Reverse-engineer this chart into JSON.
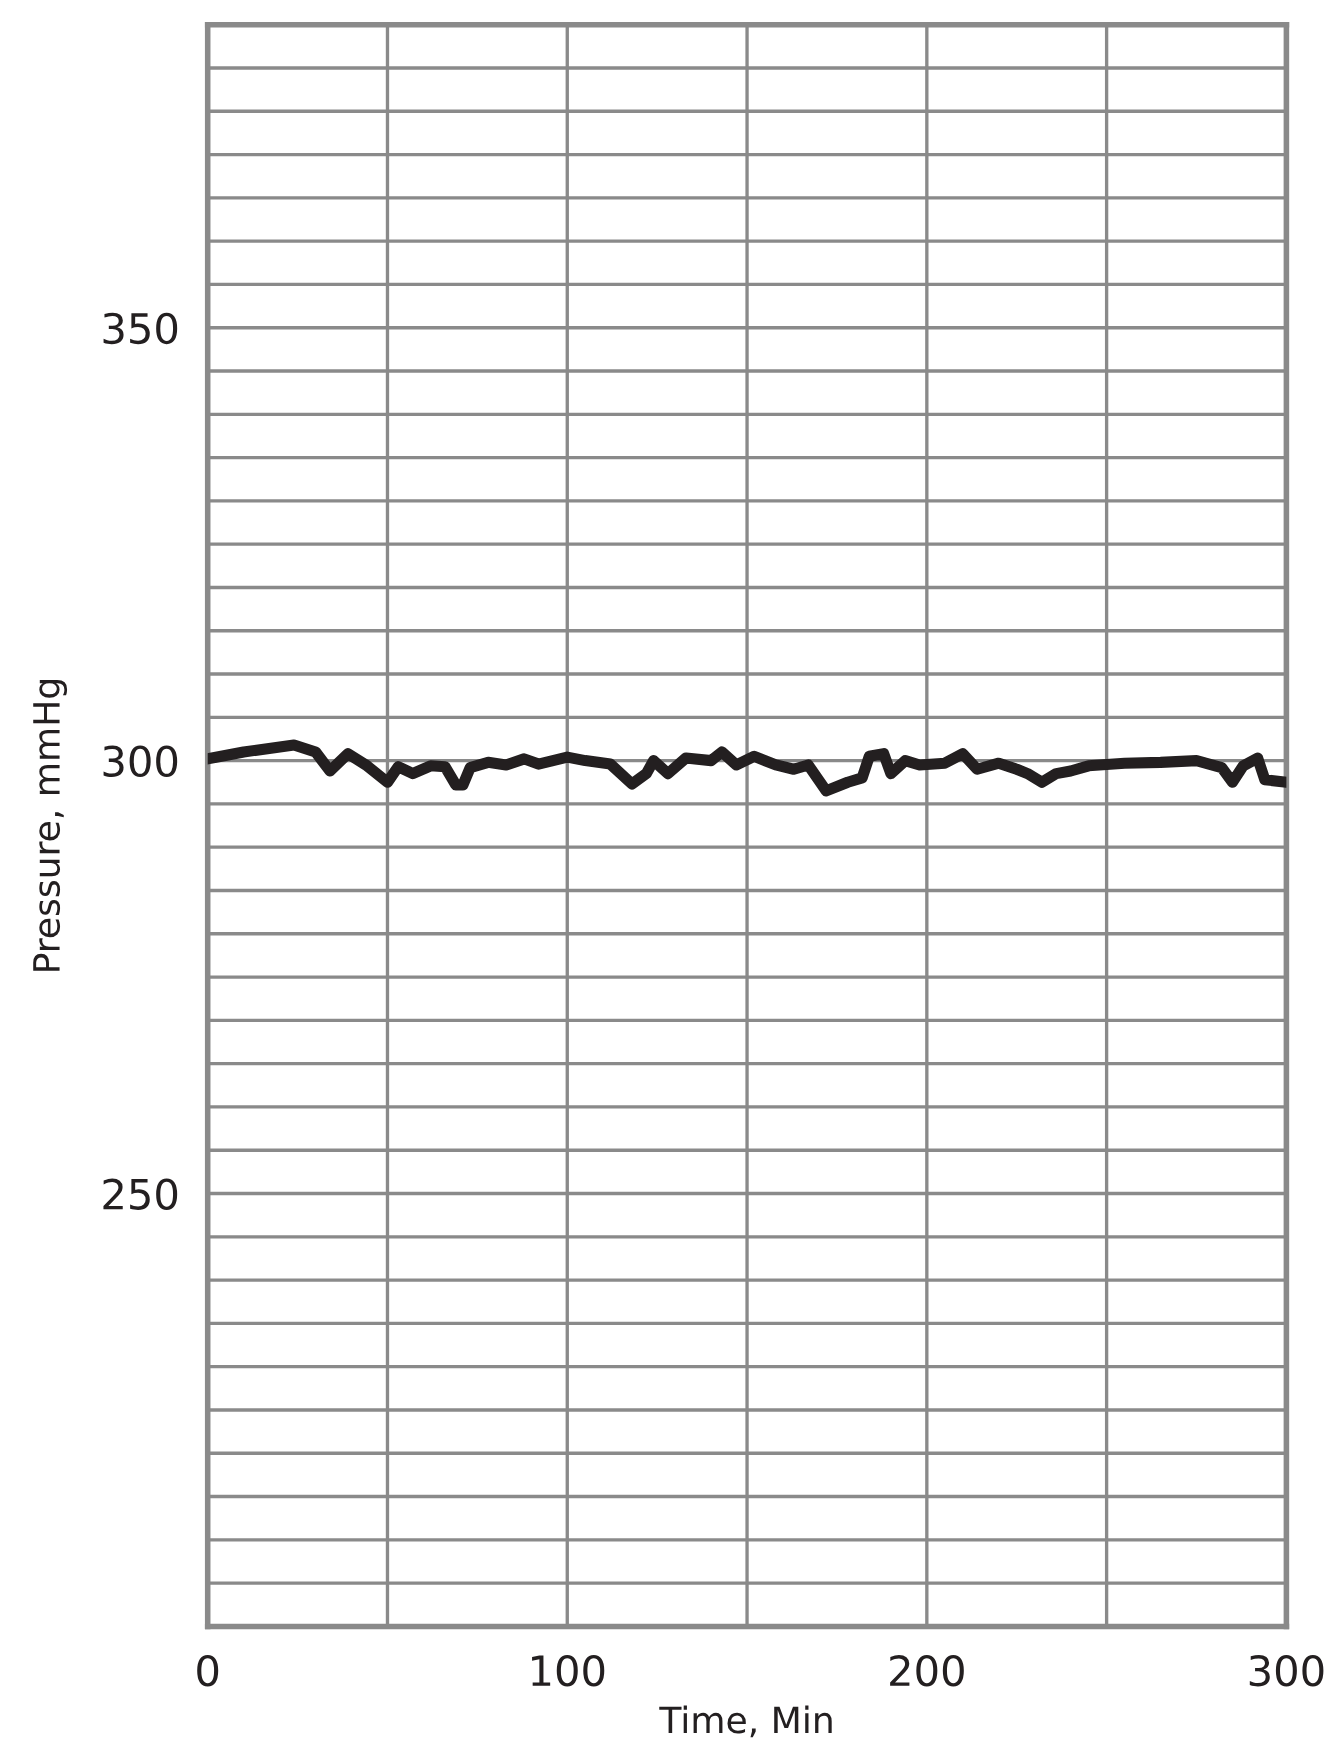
{
  "chart_data": {
    "type": "line",
    "xlabel": "Time, Min",
    "ylabel": "Pressure, mmHg",
    "xlim": [
      0,
      300
    ],
    "ylim": [
      200,
      385
    ],
    "xticks": [
      0,
      {
        "value": 50,
        "label": null
      },
      100,
      {
        "value": 150,
        "label": null
      },
      200,
      {
        "value": 250,
        "label": null
      },
      300
    ],
    "yticks": [
      {
        "value": 205,
        "label": null
      },
      {
        "value": 210,
        "label": null
      },
      {
        "value": 215,
        "label": null
      },
      {
        "value": 220,
        "label": null
      },
      {
        "value": 225,
        "label": null
      },
      {
        "value": 230,
        "label": null
      },
      {
        "value": 235,
        "label": null
      },
      {
        "value": 240,
        "label": null
      },
      {
        "value": 245,
        "label": null
      },
      250,
      {
        "value": 255,
        "label": null
      },
      {
        "value": 260,
        "label": null
      },
      {
        "value": 265,
        "label": null
      },
      {
        "value": 270,
        "label": null
      },
      {
        "value": 275,
        "label": null
      },
      {
        "value": 280,
        "label": null
      },
      {
        "value": 285,
        "label": null
      },
      {
        "value": 290,
        "label": null
      },
      {
        "value": 295,
        "label": null
      },
      300,
      {
        "value": 305,
        "label": null
      },
      {
        "value": 310,
        "label": null
      },
      {
        "value": 315,
        "label": null
      },
      {
        "value": 320,
        "label": null
      },
      {
        "value": 325,
        "label": null
      },
      {
        "value": 330,
        "label": null
      },
      {
        "value": 335,
        "label": null
      },
      {
        "value": 340,
        "label": null
      },
      {
        "value": 345,
        "label": null
      },
      350,
      {
        "value": 355,
        "label": null
      },
      {
        "value": 360,
        "label": null
      },
      {
        "value": 365,
        "label": null
      },
      {
        "value": 370,
        "label": null
      },
      {
        "value": 375,
        "label": null
      },
      {
        "value": 380,
        "label": null
      }
    ],
    "grid": true,
    "marker": "none",
    "line_style": "solid",
    "series": [
      {
        "color": "#231f20",
        "x": [
          0,
          10,
          24,
          30,
          34,
          39,
          44,
          50,
          53,
          57,
          62,
          66,
          69,
          71,
          73,
          78,
          83,
          88,
          92,
          100,
          105,
          112,
          118,
          122,
          124,
          128,
          133,
          140,
          143,
          147,
          152,
          158,
          163,
          167,
          172,
          178,
          182,
          184,
          188,
          190,
          194,
          198,
          205,
          210,
          214,
          220,
          225,
          228,
          232,
          236,
          240,
          245,
          255,
          265,
          275,
          282,
          285,
          288,
          292,
          294,
          300
        ],
        "values": [
          300.2,
          301,
          301.8,
          301,
          298.8,
          300.8,
          299.5,
          297.5,
          299.3,
          298.5,
          299.4,
          299.3,
          297.2,
          297.2,
          299.2,
          299.8,
          299.5,
          300.2,
          299.6,
          300.4,
          300,
          299.6,
          297.3,
          298.5,
          300,
          298.5,
          300.3,
          300,
          301,
          299.5,
          300.5,
          299.5,
          299,
          299.5,
          296.5,
          297.5,
          298,
          300.5,
          300.8,
          298.5,
          300,
          299.5,
          299.7,
          300.8,
          299,
          299.7,
          299,
          298.5,
          297.5,
          298.5,
          298.8,
          299.4,
          299.7,
          299.8,
          300,
          299.2,
          297.5,
          299.4,
          300.3,
          297.8,
          297.5
        ]
      }
    ]
  }
}
